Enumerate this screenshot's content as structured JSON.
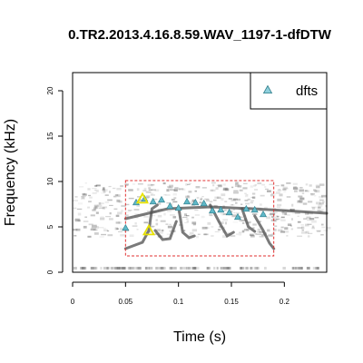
{
  "chart_data": {
    "type": "scatter",
    "title": "0.TR2.2013.4.16.8.59.WAV_1197-1-dfDTW",
    "xlabel": "Time (s)",
    "ylabel": "Frequency (kHz)",
    "xlim": [
      0,
      0.24
    ],
    "ylim": [
      0,
      22
    ],
    "x_ticks": [
      0,
      0.05,
      0.1,
      0.15,
      0.2
    ],
    "x_tick_labels": [
      "0",
      "0.05",
      "0.1",
      "0.15",
      "0.2"
    ],
    "y_ticks": [
      0,
      5,
      10,
      15,
      20
    ],
    "y_tick_labels": [
      "0",
      "5",
      "10",
      "15",
      "20"
    ],
    "grid": false,
    "legend": {
      "position": "top-right",
      "entries": [
        {
          "label": "dfts",
          "marker": "triangle",
          "color": "#8fd0dd"
        }
      ]
    },
    "series": [
      {
        "name": "dfts",
        "marker": "triangle",
        "color": "#5fb8c8",
        "x": [
          0.05,
          0.06,
          0.068,
          0.076,
          0.084,
          0.092,
          0.1,
          0.108,
          0.116,
          0.124,
          0.132,
          0.14,
          0.148,
          0.156,
          0.164,
          0.172,
          0.18
        ],
        "y": [
          4.9,
          7.7,
          8.1,
          7.8,
          8.0,
          7.3,
          7.1,
          7.8,
          7.7,
          7.6,
          6.8,
          6.9,
          6.6,
          6.1,
          7.0,
          6.9,
          6.4
        ]
      }
    ],
    "highlight_points": [
      {
        "x": 0.066,
        "y": 8.1,
        "color": "#e8e200"
      },
      {
        "x": 0.072,
        "y": 4.6,
        "color": "#e8e200"
      }
    ],
    "selection_box": {
      "x": [
        0.05,
        0.19
      ],
      "y": [
        1.8,
        10.1
      ],
      "color": "#e03030",
      "style": "dashed"
    },
    "background": "spectrogram"
  }
}
